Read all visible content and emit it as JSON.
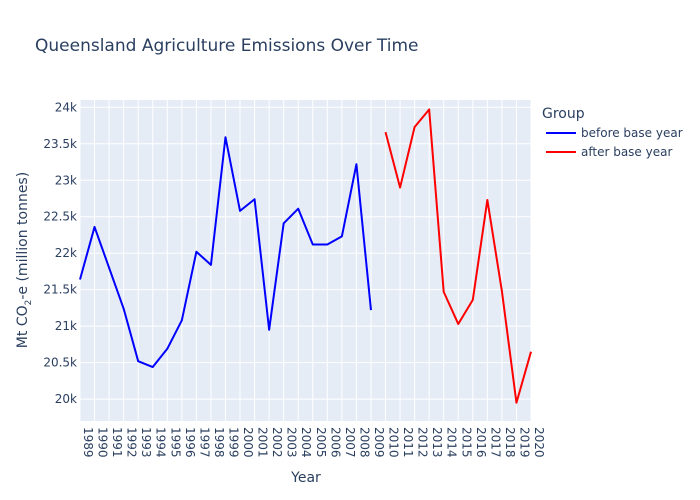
{
  "chart_data": {
    "type": "line",
    "title": "Queensland Agriculture Emissions Over Time",
    "xlabel": "Year",
    "ylabel_main": "Mt CO",
    "ylabel_sub": "2",
    "ylabel_rest": "-e (million tonnes)",
    "legend_title": "Group",
    "legend_position": "right",
    "grid": true,
    "colors": {
      "plot_bg": "#e5ecf6",
      "grid": "#ffffff",
      "text": "#2a3f5f"
    },
    "x_ticks": [
      1989,
      1990,
      1991,
      1992,
      1993,
      1994,
      1995,
      1996,
      1997,
      1998,
      1999,
      2000,
      2001,
      2002,
      2003,
      2004,
      2005,
      2006,
      2007,
      2008,
      2009,
      2010,
      2011,
      2012,
      2013,
      2014,
      2015,
      2016,
      2017,
      2018,
      2019,
      2020
    ],
    "y_ticks": [
      20000,
      20500,
      21000,
      21500,
      22000,
      22500,
      23000,
      23500,
      24000
    ],
    "y_tick_labels": [
      "20k",
      "20.5k",
      "21k",
      "21.5k",
      "22k",
      "22.5k",
      "23k",
      "23.5k",
      "24k"
    ],
    "xlim": [
      1989,
      2020
    ],
    "ylim": [
      19700,
      24100
    ],
    "series": [
      {
        "name": "before base year",
        "color": "#0000ff",
        "x": [
          1989,
          1990,
          1991,
          1992,
          1993,
          1994,
          1995,
          1996,
          1997,
          1998,
          1999,
          2000,
          2001,
          2002,
          2003,
          2004,
          2005,
          2006,
          2007,
          2008,
          2009
        ],
        "y": [
          21640,
          22360,
          21800,
          21240,
          20520,
          20440,
          20690,
          21080,
          22020,
          21840,
          23590,
          22580,
          22740,
          20950,
          22410,
          22610,
          22120,
          22120,
          22230,
          23220,
          21220
        ]
      },
      {
        "name": "after base year",
        "color": "#ff0000",
        "x": [
          2010,
          2011,
          2012,
          2013,
          2014,
          2015,
          2016,
          2017,
          2018,
          2019,
          2020
        ],
        "y": [
          23660,
          22900,
          23730,
          23970,
          21470,
          21030,
          21360,
          22730,
          21480,
          19950,
          20650
        ]
      }
    ]
  }
}
